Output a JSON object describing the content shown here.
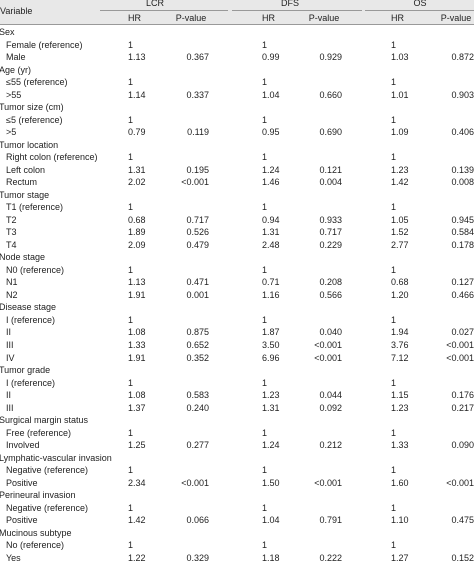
{
  "header": {
    "variable": "Variable",
    "groups": [
      "LCR",
      "DFS",
      "OS"
    ],
    "subcolumns": [
      "HR",
      "P-value"
    ]
  },
  "groups": [
    {
      "label": "Sex",
      "rows": [
        {
          "label": "Female (reference)",
          "cells": [
            [
              "1"
            ],
            [
              "1"
            ],
            [
              "1"
            ]
          ]
        },
        {
          "label": "Male",
          "cells": [
            [
              "1.13",
              "0.367"
            ],
            [
              "0.99",
              "0.929"
            ],
            [
              "1.03",
              "0.872"
            ]
          ]
        }
      ]
    },
    {
      "label": "Age (yr)",
      "rows": [
        {
          "label": "≤55 (reference)",
          "cells": [
            [
              "1"
            ],
            [
              "1"
            ],
            [
              "1"
            ]
          ]
        },
        {
          "label": ">55",
          "cells": [
            [
              "1.14",
              "0.337"
            ],
            [
              "1.04",
              "0.660"
            ],
            [
              "1.01",
              "0.903"
            ]
          ]
        }
      ]
    },
    {
      "label": "Tumor size (cm)",
      "rows": [
        {
          "label": "≤5 (reference)",
          "cells": [
            [
              "1"
            ],
            [
              "1"
            ],
            [
              "1"
            ]
          ]
        },
        {
          "label": ">5",
          "cells": [
            [
              "0.79",
              "0.119"
            ],
            [
              "0.95",
              "0.690"
            ],
            [
              "1.09",
              "0.406"
            ]
          ]
        }
      ]
    },
    {
      "label": "Tumor location",
      "rows": [
        {
          "label": "Right colon (reference)",
          "cells": [
            [
              "1"
            ],
            [
              "1"
            ],
            [
              "1"
            ]
          ]
        },
        {
          "label": "Left colon",
          "cells": [
            [
              "1.31",
              "0.195"
            ],
            [
              "1.24",
              "0.121"
            ],
            [
              "1.23",
              "0.139"
            ]
          ]
        },
        {
          "label": "Rectum",
          "cells": [
            [
              "2.02",
              "<0.001"
            ],
            [
              "1.46",
              "0.004"
            ],
            [
              "1.42",
              "0.008"
            ]
          ]
        }
      ]
    },
    {
      "label": "Tumor stage",
      "rows": [
        {
          "label": "T1 (reference)",
          "cells": [
            [
              "1"
            ],
            [
              "1"
            ],
            [
              "1"
            ]
          ]
        },
        {
          "label": "T2",
          "cells": [
            [
              "0.68",
              "0.717"
            ],
            [
              "0.94",
              "0.933"
            ],
            [
              "1.05",
              "0.945"
            ]
          ]
        },
        {
          "label": "T3",
          "cells": [
            [
              "1.89",
              "0.526"
            ],
            [
              "1.31",
              "0.717"
            ],
            [
              "1.52",
              "0.584"
            ]
          ]
        },
        {
          "label": "T4",
          "cells": [
            [
              "2.09",
              "0.479"
            ],
            [
              "2.48",
              "0.229"
            ],
            [
              "2.77",
              "0.178"
            ]
          ]
        }
      ]
    },
    {
      "label": "Node stage",
      "rows": [
        {
          "label": "N0 (reference)",
          "cells": [
            [
              "1"
            ],
            [
              "1"
            ],
            [
              "1"
            ]
          ]
        },
        {
          "label": "N1",
          "cells": [
            [
              "1.13",
              "0.471"
            ],
            [
              "0.71",
              "0.208"
            ],
            [
              "0.68",
              "0.127"
            ]
          ]
        },
        {
          "label": "N2",
          "cells": [
            [
              "1.91",
              "0.001"
            ],
            [
              "1.16",
              "0.566"
            ],
            [
              "1.20",
              "0.466"
            ]
          ]
        }
      ]
    },
    {
      "label": "Disease stage",
      "rows": [
        {
          "label": "I (reference)",
          "cells": [
            [
              "1"
            ],
            [
              "1"
            ],
            [
              "1"
            ]
          ]
        },
        {
          "label": "II",
          "cells": [
            [
              "1.08",
              "0.875"
            ],
            [
              "1.87",
              "0.040"
            ],
            [
              "1.94",
              "0.027"
            ]
          ]
        },
        {
          "label": "III",
          "cells": [
            [
              "1.33",
              "0.652"
            ],
            [
              "3.50",
              "<0.001"
            ],
            [
              "3.76",
              "<0.001"
            ]
          ]
        },
        {
          "label": "IV",
          "cells": [
            [
              "1.91",
              "0.352"
            ],
            [
              "6.96",
              "<0.001"
            ],
            [
              "7.12",
              "<0.001"
            ]
          ]
        }
      ]
    },
    {
      "label": "Tumor grade",
      "rows": [
        {
          "label": "I (reference)",
          "cells": [
            [
              "1"
            ],
            [
              "1"
            ],
            [
              "1"
            ]
          ]
        },
        {
          "label": "II",
          "cells": [
            [
              "1.08",
              "0.583"
            ],
            [
              "1.23",
              "0.044"
            ],
            [
              "1.15",
              "0.176"
            ]
          ]
        },
        {
          "label": "III",
          "cells": [
            [
              "1.37",
              "0.240"
            ],
            [
              "1.31",
              "0.092"
            ],
            [
              "1.23",
              "0.217"
            ]
          ]
        }
      ]
    },
    {
      "label": "Surgical margin status",
      "rows": [
        {
          "label": "Free (reference)",
          "cells": [
            [
              "1"
            ],
            [
              "1"
            ],
            [
              "1"
            ]
          ]
        },
        {
          "label": "Involved",
          "cells": [
            [
              "1.25",
              "0.277"
            ],
            [
              "1.24",
              "0.212"
            ],
            [
              "1.33",
              "0.090"
            ]
          ]
        }
      ]
    },
    {
      "label": "Lymphatic-vascular invasion",
      "rows": [
        {
          "label": "Negative (reference)",
          "cells": [
            [
              "1"
            ],
            [
              "1"
            ],
            [
              "1"
            ]
          ]
        },
        {
          "label": "Positive",
          "cells": [
            [
              "2.34",
              "<0.001"
            ],
            [
              "1.50",
              "<0.001"
            ],
            [
              "1.60",
              "<0.001"
            ]
          ]
        }
      ]
    },
    {
      "label": "Perineural invasion",
      "rows": [
        {
          "label": "Negative (reference)",
          "cells": [
            [
              "1"
            ],
            [
              "1"
            ],
            [
              "1"
            ]
          ]
        },
        {
          "label": "Positive",
          "cells": [
            [
              "1.42",
              "0.066"
            ],
            [
              "1.04",
              "0.791"
            ],
            [
              "1.10",
              "0.475"
            ]
          ]
        }
      ]
    },
    {
      "label": "Mucinous subtype",
      "rows": [
        {
          "label": "No (reference)",
          "cells": [
            [
              "1"
            ],
            [
              "1"
            ],
            [
              "1"
            ]
          ]
        },
        {
          "label": "Yes",
          "cells": [
            [
              "1.22",
              "0.329"
            ],
            [
              "1.18",
              "0.222"
            ],
            [
              "1.27",
              "0.152"
            ]
          ]
        }
      ]
    }
  ]
}
